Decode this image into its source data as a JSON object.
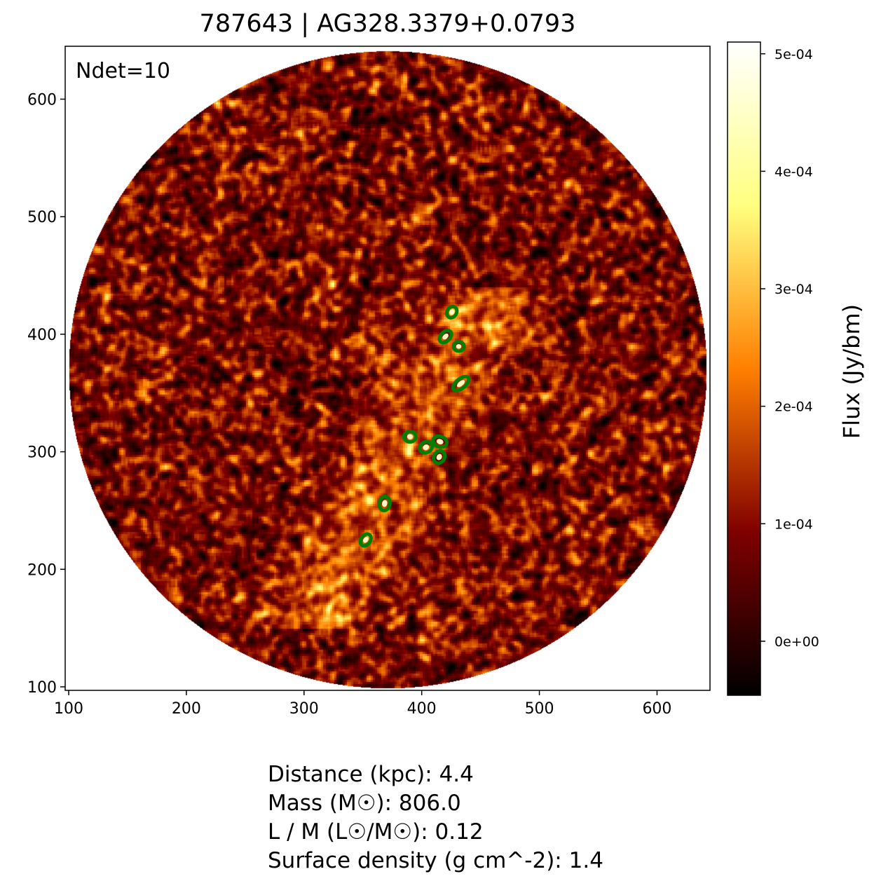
{
  "chart_data": {
    "type": "heatmap",
    "title": "787643 | AG328.3379+0.0793",
    "annotation": "Ndet=10",
    "xlabel": "",
    "ylabel": "",
    "xlim": [
      97,
      645
    ],
    "ylim": [
      97,
      645
    ],
    "xticks": [
      100,
      200,
      300,
      400,
      500,
      600
    ],
    "yticks": [
      100,
      200,
      300,
      400,
      500,
      600
    ],
    "field_of_view": {
      "shape": "circle",
      "center": [
        371,
        370
      ],
      "radius": 271
    },
    "colormap": "afmhot",
    "colorbar": {
      "label": "Flux (Jy/bm)",
      "range": [
        -4.6e-05,
        0.00051
      ],
      "ticks": [
        0,
        0.0001,
        0.0002,
        0.0003,
        0.0004,
        0.0005
      ],
      "tick_labels": [
        "0e+00",
        "1e-04",
        "2e-04",
        "3e-04",
        "4e-04",
        "5e-04"
      ]
    },
    "detections": [
      {
        "x": 425.6,
        "y": 418.8,
        "a": 5,
        "b": 4,
        "angle": 60
      },
      {
        "x": 420.2,
        "y": 398.0,
        "a": 6,
        "b": 4,
        "angle": 45
      },
      {
        "x": 431.5,
        "y": 389.6,
        "a": 4.5,
        "b": 4,
        "angle": 0
      },
      {
        "x": 433.3,
        "y": 358.0,
        "a": 8,
        "b": 4,
        "angle": 40
      },
      {
        "x": 390.0,
        "y": 312.8,
        "a": 5,
        "b": 4.5,
        "angle": 0
      },
      {
        "x": 403.6,
        "y": 303.8,
        "a": 5.5,
        "b": 4.5,
        "angle": 30
      },
      {
        "x": 415.5,
        "y": 308.6,
        "a": 6,
        "b": 4.5,
        "angle": -20
      },
      {
        "x": 414.9,
        "y": 295.5,
        "a": 5.5,
        "b": 4.5,
        "angle": 60
      },
      {
        "x": 368.5,
        "y": 256.0,
        "a": 6,
        "b": 4.5,
        "angle": 80
      },
      {
        "x": 352.4,
        "y": 225.0,
        "a": 5.5,
        "b": 4,
        "angle": 55
      }
    ],
    "detection_color": "#008000"
  },
  "stats": [
    "Distance (kpc): 4.4",
    "Mass (M☉): 806.0",
    "L / M (L☉/M☉): 0.12",
    "Surface density (g cm^-2): 1.4"
  ]
}
